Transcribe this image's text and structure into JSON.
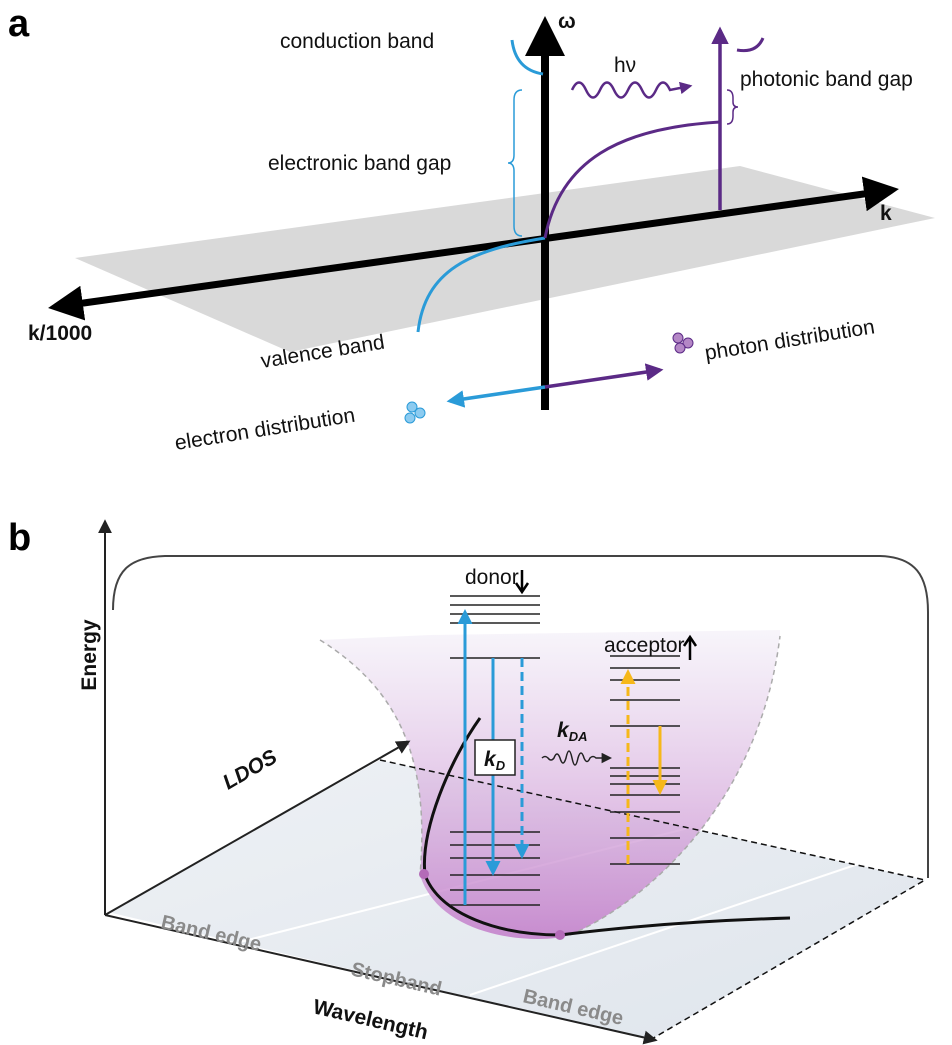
{
  "panel_a": {
    "label": "a",
    "omega_axis": "ω",
    "k_axis": "k",
    "k_left_axis": "k/1000",
    "conduction_band": "conduction band",
    "valence_band": "valence band",
    "electronic_band_gap": "electronic band gap",
    "photonic_band_gap": "photonic band gap",
    "photon": "hν",
    "photon_distribution": "photon distribution",
    "electron_distribution": "electron distribution"
  },
  "panel_b": {
    "label": "b",
    "energy_axis": "Energy",
    "ldos_axis": "LDOS",
    "wavelength_axis": "Wavelength",
    "donor": "donor",
    "acceptor": "acceptor",
    "k_d": {
      "main": "k",
      "sub": "D"
    },
    "k_da": {
      "main": "k",
      "sub": "DA"
    },
    "regions": [
      "Band edge",
      "Stopband",
      "Band edge"
    ]
  }
}
